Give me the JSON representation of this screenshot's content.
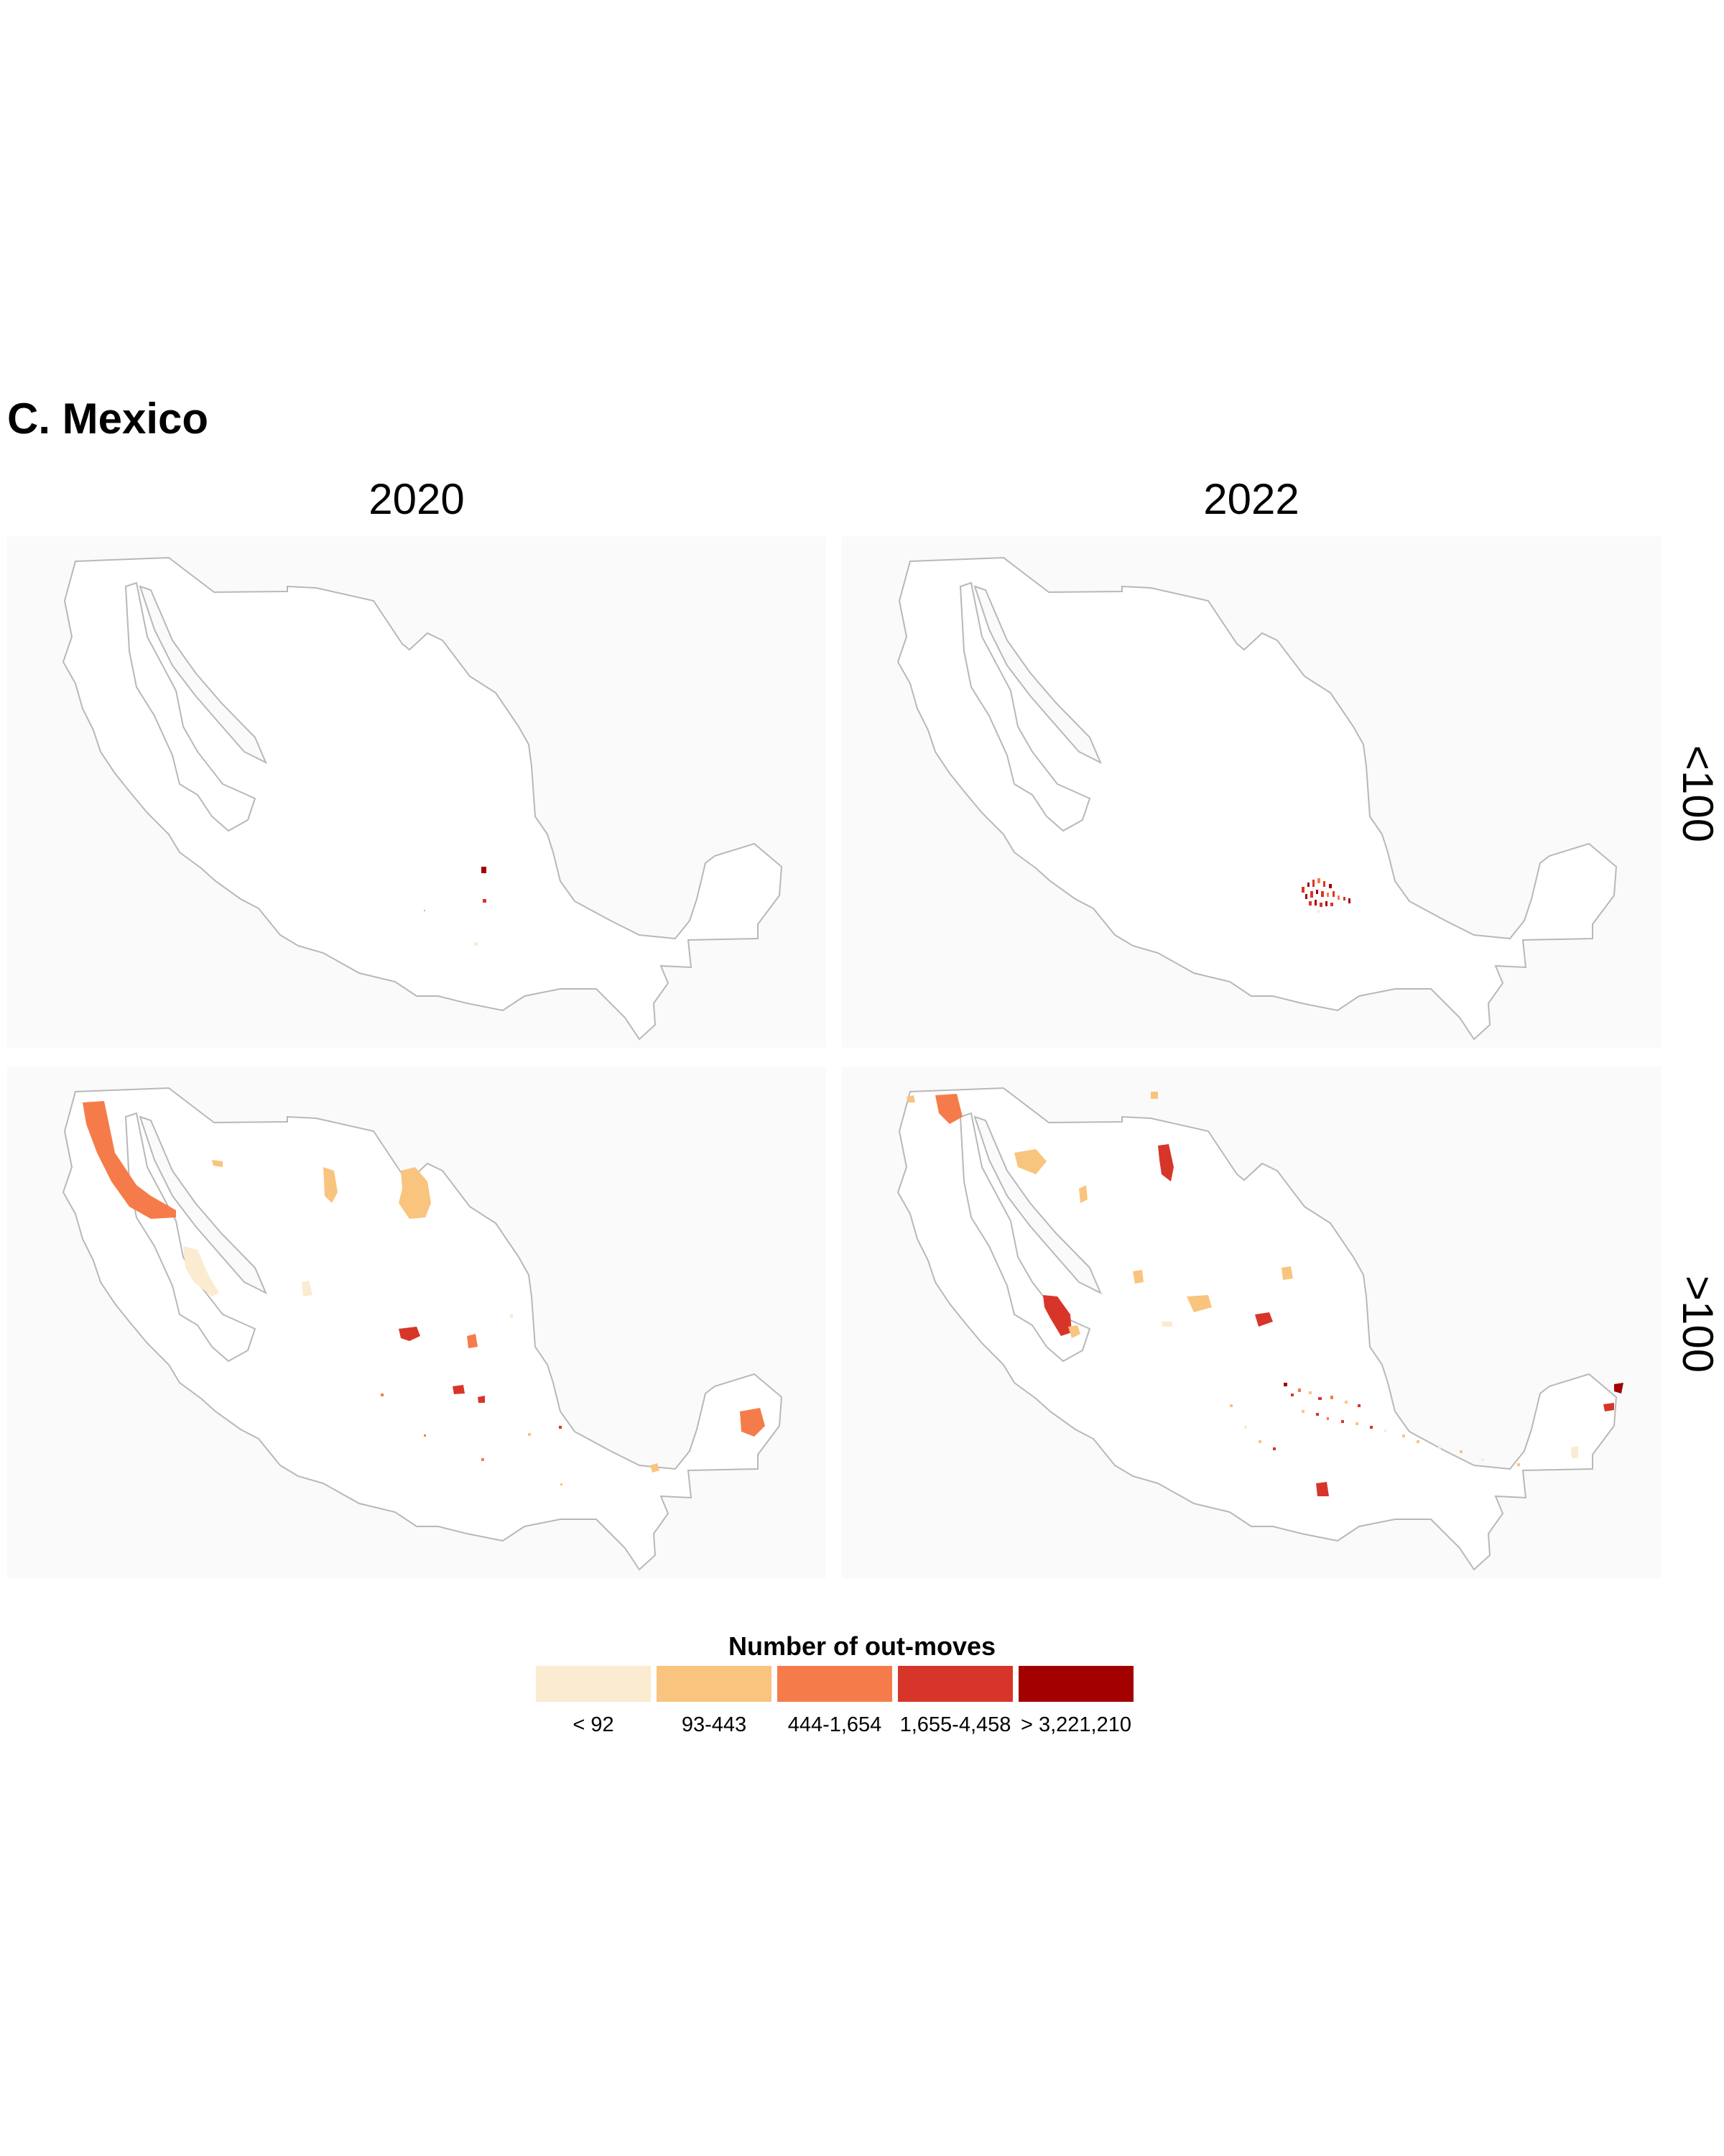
{
  "title": "C. Mexico",
  "columns": [
    "2020",
    "2022"
  ],
  "rows": [
    "<100",
    ">100"
  ],
  "legend": {
    "title": "Number of out-moves",
    "bins": [
      {
        "label": "< 92",
        "color": "#fbebd0"
      },
      {
        "label": "93-443",
        "color": "#f9c47e"
      },
      {
        "label": "444-1,654",
        "color": "#f57c4a"
      },
      {
        "label": "1,655-4,458",
        "color": "#d8352a"
      },
      {
        "label": "> 3,221,210",
        "color": "#a30000"
      }
    ]
  },
  "outline_color": "#b8b8b8",
  "panel_background": "#fafafa"
}
